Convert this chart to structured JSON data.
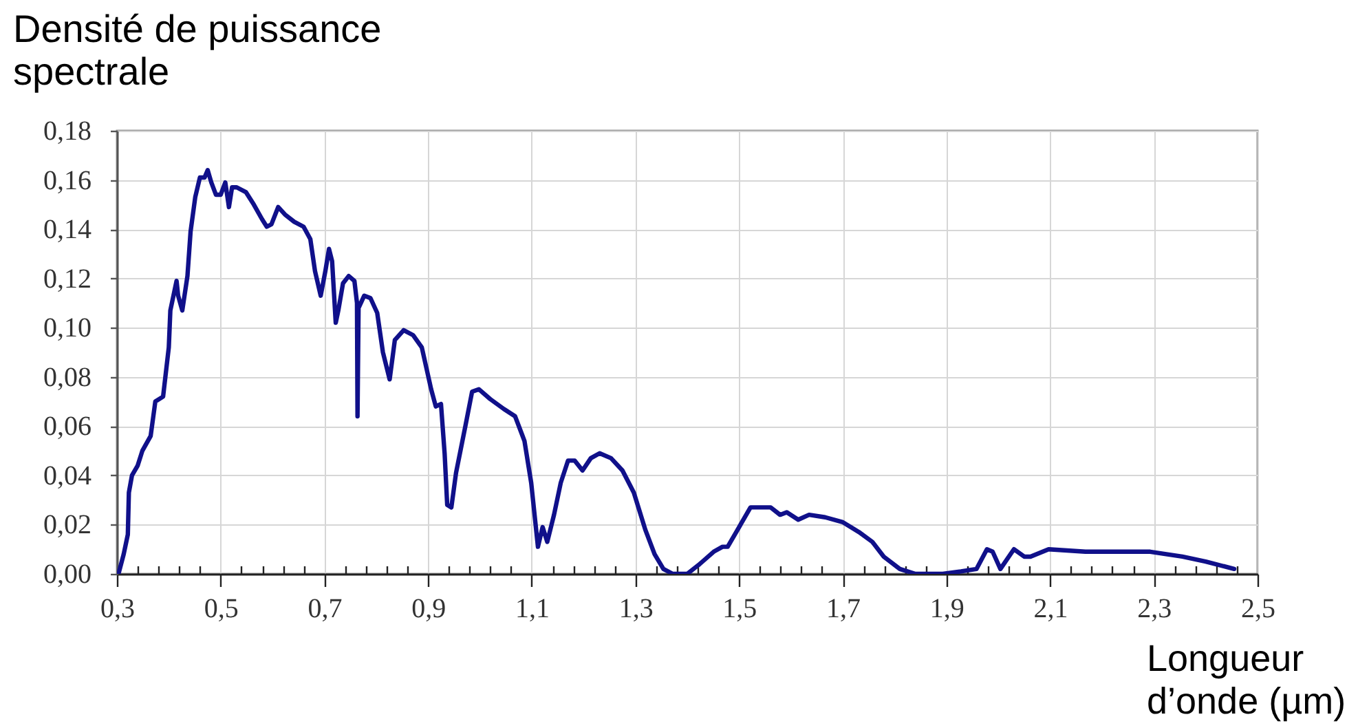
{
  "chart_data": {
    "type": "line",
    "ylabel": "Densité de puissance spectrale",
    "xlabel": "Longueur d’onde (µm)",
    "series": [
      {
        "color": "#10108a",
        "x": [
          0.303,
          0.313,
          0.321,
          0.323,
          0.329,
          0.34,
          0.349,
          0.365,
          0.374,
          0.389,
          0.4,
          0.403,
          0.415,
          0.418,
          0.426,
          0.436,
          0.442,
          0.451,
          0.46,
          0.469,
          0.475,
          0.482,
          0.491,
          0.5,
          0.509,
          0.516,
          0.522,
          0.531,
          0.549,
          0.564,
          0.58,
          0.589,
          0.598,
          0.611,
          0.624,
          0.642,
          0.66,
          0.673,
          0.682,
          0.693,
          0.702,
          0.709,
          0.715,
          0.722,
          0.727,
          0.736,
          0.747,
          0.758,
          0.763,
          0.764,
          0.766,
          0.777,
          0.789,
          0.802,
          0.813,
          0.826,
          0.836,
          0.853,
          0.871,
          0.888,
          0.906,
          0.915,
          0.925,
          0.932,
          0.937,
          0.945,
          0.954,
          0.972,
          0.985,
          0.998,
          1.02,
          1.046,
          1.068,
          1.086,
          1.099,
          1.112,
          1.121,
          1.13,
          1.143,
          1.156,
          1.17,
          1.183,
          1.198,
          1.214,
          1.231,
          1.253,
          1.275,
          1.297,
          1.319,
          1.337,
          1.354,
          1.372,
          1.4,
          1.424,
          1.451,
          1.468,
          1.478,
          1.5,
          1.522,
          1.561,
          1.579,
          1.592,
          1.614,
          1.635,
          1.666,
          1.7,
          1.731,
          1.757,
          1.779,
          1.81,
          1.84,
          1.893,
          1.928,
          1.958,
          1.978,
          1.989,
          2.004,
          2.03,
          2.05,
          2.062,
          2.097,
          2.168,
          2.293,
          2.355,
          2.4,
          2.455
        ],
        "values": [
          0,
          0.008,
          0.016,
          0.033,
          0.04,
          0.044,
          0.05,
          0.056,
          0.07,
          0.072,
          0.092,
          0.107,
          0.119,
          0.113,
          0.107,
          0.121,
          0.139,
          0.153,
          0.161,
          0.161,
          0.164,
          0.159,
          0.154,
          0.154,
          0.159,
          0.149,
          0.157,
          0.157,
          0.155,
          0.15,
          0.144,
          0.141,
          0.142,
          0.149,
          0.146,
          0.143,
          0.141,
          0.136,
          0.123,
          0.113,
          0.123,
          0.132,
          0.127,
          0.102,
          0.107,
          0.118,
          0.121,
          0.119,
          0.11,
          0.064,
          0.108,
          0.113,
          0.112,
          0.106,
          0.09,
          0.079,
          0.095,
          0.099,
          0.097,
          0.092,
          0.075,
          0.068,
          0.069,
          0.049,
          0.028,
          0.027,
          0.041,
          0.06,
          0.074,
          0.075,
          0.071,
          0.067,
          0.064,
          0.054,
          0.037,
          0.011,
          0.019,
          0.013,
          0.024,
          0.037,
          0.046,
          0.046,
          0.042,
          0.047,
          0.049,
          0.047,
          0.042,
          0.033,
          0.018,
          0.008,
          0.002,
          0,
          0,
          0.004,
          0.009,
          0.011,
          0.011,
          0.019,
          0.027,
          0.027,
          0.024,
          0.025,
          0.022,
          0.024,
          0.023,
          0.021,
          0.017,
          0.013,
          0.007,
          0.002,
          0,
          0,
          0.001,
          0.002,
          0.01,
          0.009,
          0.002,
          0.01,
          0.007,
          0.007,
          0.01,
          0.009,
          0.009,
          0.007,
          0.005,
          0.002
        ]
      }
    ],
    "xlim": [
      0.3,
      2.5
    ],
    "xticks": [
      {
        "value": 0.3,
        "label": "0,3"
      },
      {
        "value": 0.34,
        "label": null
      },
      {
        "value": 0.38,
        "label": null
      },
      {
        "value": 0.42,
        "label": null
      },
      {
        "value": 0.46,
        "label": null
      },
      {
        "value": 0.5,
        "label": "0,5"
      },
      {
        "value": 0.54,
        "label": null
      },
      {
        "value": 0.58,
        "label": null
      },
      {
        "value": 0.62,
        "label": null
      },
      {
        "value": 0.66,
        "label": null
      },
      {
        "value": 0.7,
        "label": "0,7"
      },
      {
        "value": 0.74,
        "label": null
      },
      {
        "value": 0.78,
        "label": null
      },
      {
        "value": 0.82,
        "label": null
      },
      {
        "value": 0.86,
        "label": null
      },
      {
        "value": 0.9,
        "label": "0,9"
      },
      {
        "value": 0.94,
        "label": null
      },
      {
        "value": 0.98,
        "label": null
      },
      {
        "value": 1.02,
        "label": null
      },
      {
        "value": 1.06,
        "label": null
      },
      {
        "value": 1.1,
        "label": "1,1"
      },
      {
        "value": 1.14,
        "label": null
      },
      {
        "value": 1.18,
        "label": null
      },
      {
        "value": 1.22,
        "label": null
      },
      {
        "value": 1.26,
        "label": null
      },
      {
        "value": 1.3,
        "label": "1,3"
      },
      {
        "value": 1.34,
        "label": null
      },
      {
        "value": 1.38,
        "label": null
      },
      {
        "value": 1.42,
        "label": null
      },
      {
        "value": 1.46,
        "label": null
      },
      {
        "value": 1.5,
        "label": "1,5"
      },
      {
        "value": 1.54,
        "label": null
      },
      {
        "value": 1.58,
        "label": null
      },
      {
        "value": 1.62,
        "label": null
      },
      {
        "value": 1.66,
        "label": null
      },
      {
        "value": 1.7,
        "label": "1,7"
      },
      {
        "value": 1.74,
        "label": null
      },
      {
        "value": 1.78,
        "label": null
      },
      {
        "value": 1.82,
        "label": null
      },
      {
        "value": 1.86,
        "label": null
      },
      {
        "value": 1.9,
        "label": "1,9"
      },
      {
        "value": 1.94,
        "label": null
      },
      {
        "value": 1.98,
        "label": null
      },
      {
        "value": 2.02,
        "label": null
      },
      {
        "value": 2.06,
        "label": null
      },
      {
        "value": 2.1,
        "label": "2,1"
      },
      {
        "value": 2.14,
        "label": null
      },
      {
        "value": 2.18,
        "label": null
      },
      {
        "value": 2.22,
        "label": null
      },
      {
        "value": 2.26,
        "label": null
      },
      {
        "value": 2.3,
        "label": "2,3"
      },
      {
        "value": 2.34,
        "label": null
      },
      {
        "value": 2.38,
        "label": null
      },
      {
        "value": 2.42,
        "label": null
      },
      {
        "value": 2.46,
        "label": null
      },
      {
        "value": 2.5,
        "label": "2,5"
      }
    ],
    "ylim": [
      0,
      0.18
    ],
    "yticks": [
      {
        "value": 0,
        "label": "0,00"
      },
      {
        "value": 0.02,
        "label": "0,02"
      },
      {
        "value": 0.04,
        "label": "0,04"
      },
      {
        "value": 0.06,
        "label": "0,06"
      },
      {
        "value": 0.08,
        "label": "0,08"
      },
      {
        "value": 0.1,
        "label": "0,10"
      },
      {
        "value": 0.12,
        "label": "0,12"
      },
      {
        "value": 0.14,
        "label": "0,14"
      },
      {
        "value": 0.16,
        "label": "0,16"
      },
      {
        "value": 0.18,
        "label": "0,18"
      }
    ],
    "grid": true
  }
}
